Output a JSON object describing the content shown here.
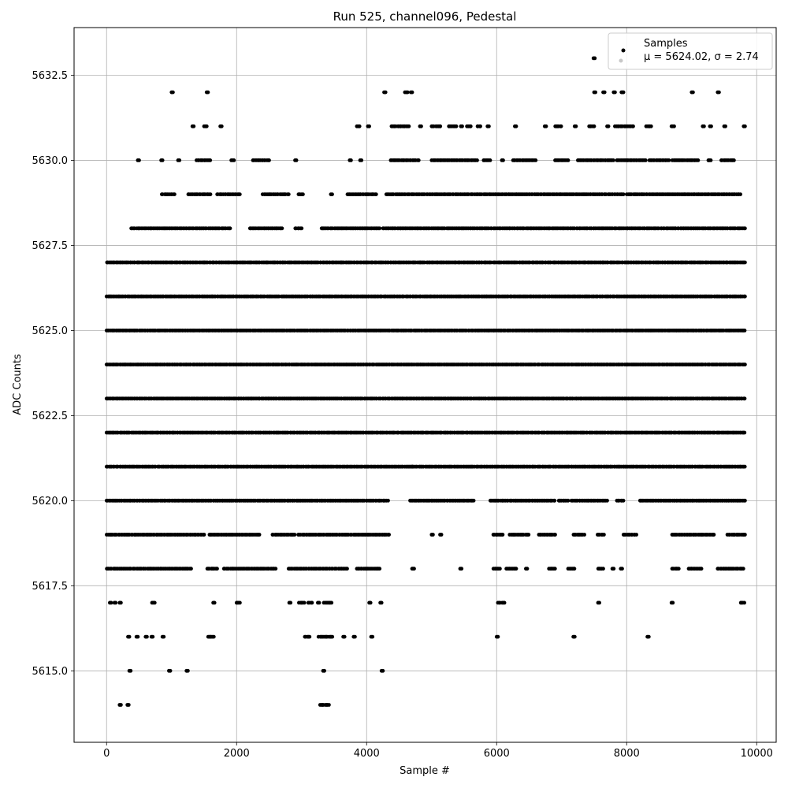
{
  "chart_data": {
    "type": "scatter",
    "title": "Run 525, channel096, Pedestal",
    "xlabel": "Sample #",
    "ylabel": "ADC Counts",
    "xlim": [
      -500,
      10300
    ],
    "ylim": [
      5612.9,
      5633.9
    ],
    "xticks": [
      0,
      2000,
      4000,
      6000,
      8000,
      10000
    ],
    "xtick_labels": [
      "0",
      "2000",
      "4000",
      "6000",
      "8000",
      "10000"
    ],
    "yticks": [
      5615.0,
      5617.5,
      5620.0,
      5622.5,
      5625.0,
      5627.5,
      5630.0,
      5632.5
    ],
    "ytick_labels": [
      "5615.0",
      "5617.5",
      "5620.0",
      "5622.5",
      "5625.0",
      "5627.5",
      "5630.0",
      "5632.5"
    ],
    "grid": true,
    "legend": {
      "location": "top-right",
      "label_line1": "Samples",
      "label_line2": "μ = 5624.02, σ = 2.74"
    },
    "series": [
      {
        "name": "Samples",
        "color": "#000000",
        "n_samples": 9840,
        "levels": [
          {
            "y": 5614,
            "ranges": [
              [
                200,
                220
              ],
              [
                320,
                340
              ],
              [
                3280,
                3420
              ]
            ]
          },
          {
            "y": 5615,
            "ranges": [
              [
                350,
                370
              ],
              [
                960,
                980
              ],
              [
                1230,
                1250
              ],
              [
                3330,
                3350
              ],
              [
                4230,
                4250
              ]
            ]
          },
          {
            "y": 5616,
            "ranges": [
              [
                330,
                350
              ],
              [
                460,
                480
              ],
              [
                600,
                620
              ],
              [
                690,
                710
              ],
              [
                860,
                880
              ],
              [
                1560,
                1650
              ],
              [
                3050,
                3130
              ],
              [
                3260,
                3480
              ],
              [
                3640,
                3660
              ],
              [
                3800,
                3820
              ],
              [
                4070,
                4090
              ],
              [
                6000,
                6020
              ],
              [
                7180,
                7200
              ],
              [
                8320,
                8340
              ]
            ]
          },
          {
            "y": 5617,
            "ranges": [
              [
                50,
                70
              ],
              [
                120,
                140
              ],
              [
                200,
                220
              ],
              [
                700,
                740
              ],
              [
                1640,
                1660
              ],
              [
                2000,
                2050
              ],
              [
                2810,
                2830
              ],
              [
                2960,
                3040
              ],
              [
                3100,
                3160
              ],
              [
                3250,
                3270
              ],
              [
                3340,
                3460
              ],
              [
                4040,
                4060
              ],
              [
                4210,
                4230
              ],
              [
                6020,
                6120
              ],
              [
                7560,
                7580
              ],
              [
                8690,
                8710
              ],
              [
                9750,
                9810
              ]
            ]
          },
          {
            "y": 5618,
            "ranges": [
              [
                0,
                1300
              ],
              [
                1550,
                1700
              ],
              [
                1800,
                2600
              ],
              [
                2800,
                3700
              ],
              [
                3850,
                4200
              ],
              [
                4700,
                4730
              ],
              [
                5440,
                5460
              ],
              [
                5950,
                6050
              ],
              [
                6150,
                6300
              ],
              [
                6450,
                6470
              ],
              [
                6800,
                6900
              ],
              [
                7100,
                7200
              ],
              [
                7560,
                7640
              ],
              [
                7780,
                7800
              ],
              [
                7910,
                7930
              ],
              [
                8700,
                8800
              ],
              [
                8950,
                9150
              ],
              [
                9400,
                9800
              ]
            ]
          },
          {
            "y": 5619,
            "ranges": [
              [
                0,
                1500
              ],
              [
                1580,
                2350
              ],
              [
                2550,
                2900
              ],
              [
                2950,
                4350
              ],
              [
                5000,
                5020
              ],
              [
                5130,
                5150
              ],
              [
                5950,
                6100
              ],
              [
                6200,
                6500
              ],
              [
                6650,
                6900
              ],
              [
                7180,
                7350
              ],
              [
                7550,
                7650
              ],
              [
                7950,
                8150
              ],
              [
                8700,
                9350
              ],
              [
                9550,
                9820
              ]
            ]
          },
          {
            "y": 5620,
            "ranges": [
              [
                0,
                4330
              ],
              [
                4670,
                5650
              ],
              [
                5900,
                6900
              ],
              [
                6950,
                7100
              ],
              [
                7150,
                7700
              ],
              [
                7850,
                7950
              ],
              [
                8200,
                9820
              ]
            ]
          },
          {
            "y": 5621,
            "ranges": [
              [
                0,
                4700
              ],
              [
                4700,
                9820
              ]
            ]
          },
          {
            "y": 5622,
            "ranges": [
              [
                0,
                9820
              ]
            ]
          },
          {
            "y": 5623,
            "ranges": [
              [
                0,
                9820
              ]
            ]
          },
          {
            "y": 5624,
            "ranges": [
              [
                0,
                9820
              ]
            ]
          },
          {
            "y": 5625,
            "ranges": [
              [
                0,
                9820
              ]
            ]
          },
          {
            "y": 5626,
            "ranges": [
              [
                0,
                9820
              ]
            ]
          },
          {
            "y": 5627,
            "ranges": [
              [
                0,
                9820
              ]
            ]
          },
          {
            "y": 5628,
            "ranges": [
              [
                380,
                1900
              ],
              [
                2200,
                2700
              ],
              [
                2900,
                3000
              ],
              [
                3300,
                4200
              ],
              [
                4250,
                9820
              ]
            ]
          },
          {
            "y": 5629,
            "ranges": [
              [
                850,
                1050
              ],
              [
                1250,
                1600
              ],
              [
                1700,
                2050
              ],
              [
                2400,
                2800
              ],
              [
                2950,
                3020
              ],
              [
                3450,
                3470
              ],
              [
                3700,
                4150
              ],
              [
                4300,
                7950
              ],
              [
                8000,
                9750
              ]
            ]
          },
          {
            "y": 5630,
            "ranges": [
              [
                480,
                500
              ],
              [
                840,
                860
              ],
              [
                1100,
                1120
              ],
              [
                1380,
                1600
              ],
              [
                1920,
                1960
              ],
              [
                2250,
                2500
              ],
              [
                2900,
                2920
              ],
              [
                3740,
                3760
              ],
              [
                3900,
                3920
              ],
              [
                4370,
                4800
              ],
              [
                5000,
                5700
              ],
              [
                5800,
                5900
              ],
              [
                6080,
                6100
              ],
              [
                6250,
                6600
              ],
              [
                6900,
                7100
              ],
              [
                7250,
                7800
              ],
              [
                7850,
                8300
              ],
              [
                8350,
                8650
              ],
              [
                8700,
                9100
              ],
              [
                9250,
                9300
              ],
              [
                9450,
                9650
              ]
            ]
          },
          {
            "y": 5631,
            "ranges": [
              [
                1320,
                1340
              ],
              [
                1500,
                1540
              ],
              [
                1750,
                1770
              ],
              [
                3850,
                3890
              ],
              [
                4020,
                4040
              ],
              [
                4380,
                4650
              ],
              [
                4820,
                4840
              ],
              [
                5000,
                5140
              ],
              [
                5260,
                5380
              ],
              [
                5450,
                5470
              ],
              [
                5540,
                5600
              ],
              [
                5700,
                5750
              ],
              [
                5860,
                5880
              ],
              [
                6280,
                6300
              ],
              [
                6740,
                6760
              ],
              [
                6900,
                7000
              ],
              [
                7200,
                7220
              ],
              [
                7420,
                7500
              ],
              [
                7700,
                7720
              ],
              [
                7820,
                8100
              ],
              [
                8300,
                8380
              ],
              [
                8690,
                8730
              ],
              [
                9170,
                9190
              ],
              [
                9280,
                9300
              ],
              [
                9500,
                9520
              ],
              [
                9800,
                9820
              ]
            ]
          },
          {
            "y": 5632,
            "ranges": [
              [
                1000,
                1020
              ],
              [
                1540,
                1560
              ],
              [
                4270,
                4290
              ],
              [
                4590,
                4630
              ],
              [
                4680,
                4700
              ],
              [
                7500,
                7520
              ],
              [
                7640,
                7660
              ],
              [
                7800,
                7820
              ],
              [
                7920,
                7950
              ],
              [
                9000,
                9020
              ],
              [
                9400,
                9420
              ]
            ]
          },
          {
            "y": 5633,
            "ranges": [
              [
                7490,
                7510
              ]
            ]
          }
        ]
      }
    ]
  }
}
